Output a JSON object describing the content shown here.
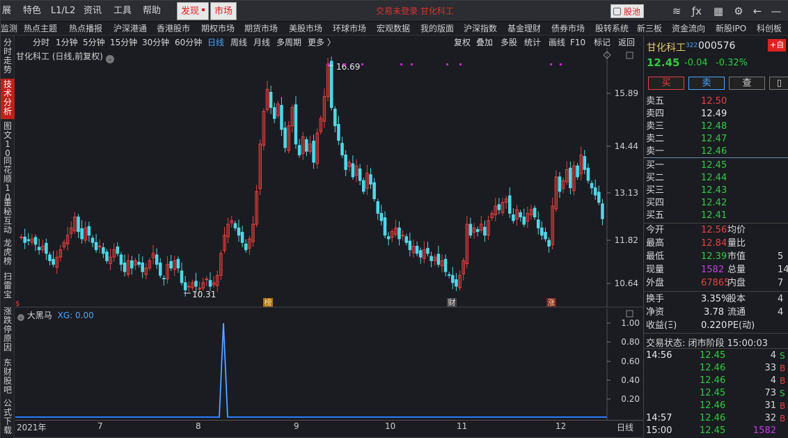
{
  "menubar": {
    "items": [
      "展",
      "特色",
      "L1/L2",
      "资讯",
      "工具",
      "帮助"
    ],
    "discover": "发现",
    "market": "市场",
    "brand": "交易未登录  甘化科工",
    "stockpool": "股池"
  },
  "nav": [
    "监测",
    "热点主题",
    "热点播报",
    "沪深港通",
    "香港股市",
    "期权市场",
    "期货市场",
    "美股市场",
    "环球市场",
    "宏观数据",
    "我的版面",
    "沪深指数",
    "基金理财",
    "债券市场",
    "股转系统",
    "新三板",
    "资金流向",
    "新股IPO",
    "科创板"
  ],
  "lefttabs": [
    {
      "label": "分时走势",
      "active": false
    },
    {
      "label": "技术分析",
      "active": true
    },
    {
      "label": "图文10",
      "active": false
    },
    {
      "label": "同花顺10",
      "active": false
    },
    {
      "label": "董秘互动",
      "active": false
    },
    {
      "label": "龙虎榜",
      "active": false
    },
    {
      "label": "扫雷宝",
      "active": false
    },
    {
      "label": "涨跌停原因",
      "active": false
    },
    {
      "label": "东财股吧",
      "active": false
    },
    {
      "label": "公式下载",
      "active": false
    }
  ],
  "periods": [
    "分时",
    "1分钟",
    "5分钟",
    "15分钟",
    "30分钟",
    "60分钟",
    "日线",
    "周线",
    "月线",
    "多周期",
    "更多 〉"
  ],
  "selected_period": "日线",
  "chart_tools": [
    "复权",
    "叠加",
    "多股",
    "统计",
    "画线",
    "F10",
    "标记",
    "返回"
  ],
  "chart": {
    "title": "甘化科工 (日线,前复权)",
    "price_ticks": [
      "15.89",
      "14.44",
      "13.13",
      "11.82",
      "10.64"
    ],
    "high_label": "16.69",
    "low_label": "10.31",
    "event_markers": [
      "榜",
      "财",
      "涨"
    ],
    "left_marker": "$"
  },
  "indicator": {
    "name": "大黑马",
    "value_label": "XG: 0.00",
    "ticks": [
      "1.00",
      "0.80",
      "0.60",
      "0.40",
      "0.20"
    ]
  },
  "xaxis": {
    "labels": [
      "2021年",
      "7",
      "8",
      "9",
      "10",
      "11",
      "12"
    ],
    "period": "日线"
  },
  "chart_data": {
    "type": "candlestick",
    "title": "甘化科工 (日线,前复权)",
    "yticks": [
      15.89,
      14.44,
      13.13,
      11.82,
      10.64
    ],
    "high": 16.69,
    "low": 10.31,
    "indicator_series": {
      "name": "大黑马",
      "label": "XG",
      "max": 1.0,
      "spike_month": "8"
    }
  },
  "quote": {
    "name": "甘化科工",
    "badge": "322",
    "code": "000576",
    "add": "+自",
    "price": "12.45",
    "change": "-0.04",
    "pct": "-0.32%",
    "buy": "买",
    "sell": "卖",
    "query": "查"
  },
  "asks": [
    {
      "label": "卖五",
      "price": "12.50",
      "color": "red"
    },
    {
      "label": "卖四",
      "price": "12.49",
      "color": "white"
    },
    {
      "label": "卖三",
      "price": "12.48",
      "color": "green"
    },
    {
      "label": "卖二",
      "price": "12.47",
      "color": "green"
    },
    {
      "label": "卖一",
      "price": "12.46",
      "color": "green"
    }
  ],
  "bids": [
    {
      "label": "买一",
      "price": "12.45",
      "color": "green"
    },
    {
      "label": "买二",
      "price": "12.44",
      "color": "green"
    },
    {
      "label": "买三",
      "price": "12.43",
      "color": "green"
    },
    {
      "label": "买四",
      "price": "12.42",
      "color": "green"
    },
    {
      "label": "买五",
      "price": "12.41",
      "color": "green"
    }
  ],
  "stats": [
    {
      "k": "今开",
      "v": "12.56",
      "vc": "red",
      "k2": "均价",
      "v2": ""
    },
    {
      "k": "最高",
      "v": "12.84",
      "vc": "red",
      "k2": "量比",
      "v2": ""
    },
    {
      "k": "最低",
      "v": "12.39",
      "vc": "green",
      "k2": "市值",
      "v2": "5"
    },
    {
      "k": "现量",
      "v": "1582",
      "vc": "purple",
      "k2": "总量",
      "v2": "14"
    },
    {
      "k": "外盘",
      "v": "67865",
      "vc": "red",
      "k2": "内盘",
      "v2": "7"
    },
    {
      "k": "换手",
      "v": "3.35%",
      "vc": "white",
      "k2": "股本",
      "v2": "4"
    },
    {
      "k": "净资",
      "v": "3.78",
      "vc": "white",
      "k2": "流通",
      "v2": "4"
    },
    {
      "k": "收益(Ξ)",
      "v": "0.220",
      "vc": "white",
      "k2": "PE(动)",
      "v2": ""
    }
  ],
  "trade_status": "交易状态: 闭市阶段 15:00:03",
  "trades": [
    {
      "t": "14:56",
      "p": "12.45",
      "q": "4",
      "s": "S"
    },
    {
      "t": "",
      "p": "12.46",
      "q": "33",
      "s": "B"
    },
    {
      "t": "",
      "p": "12.46",
      "q": "4",
      "s": "B"
    },
    {
      "t": "",
      "p": "12.45",
      "q": "73",
      "s": "S"
    },
    {
      "t": "",
      "p": "12.46",
      "q": "31",
      "s": "B"
    },
    {
      "t": "14:57",
      "p": "12.46",
      "q": "32",
      "s": "B"
    },
    {
      "t": "15:00",
      "p": "12.45",
      "q": "1582",
      "s": ""
    }
  ],
  "colors": {
    "up": "#e84040",
    "down": "#4fd8e8",
    "green": "#2ecc40",
    "accent": "#4aa6ff"
  }
}
